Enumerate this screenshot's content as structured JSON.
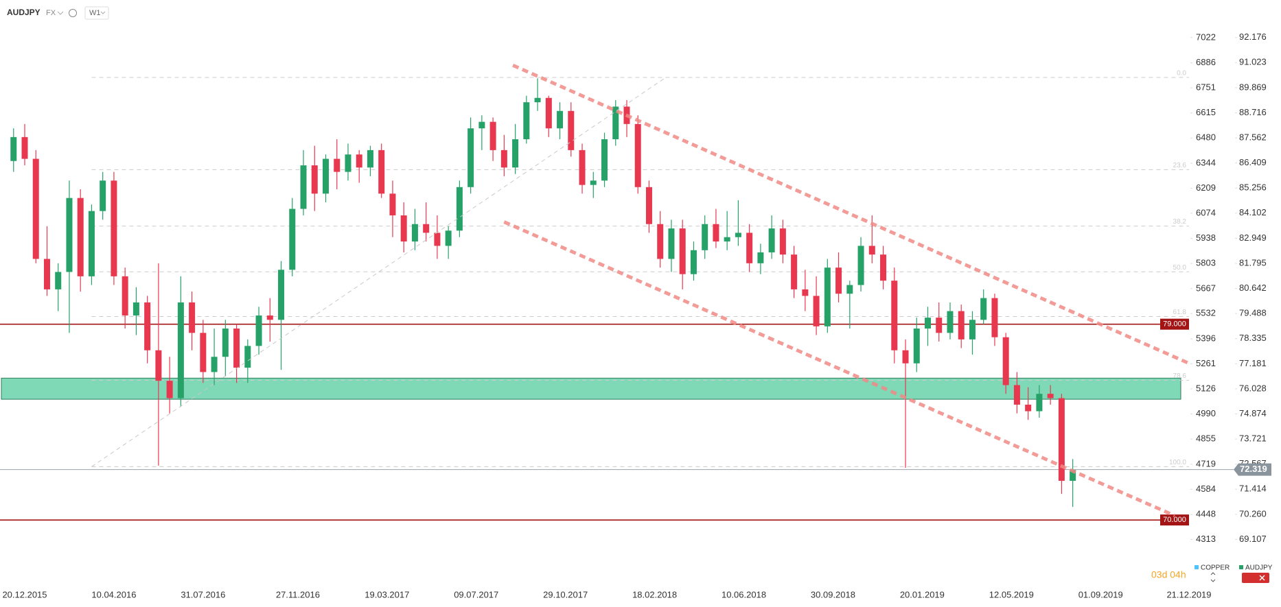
{
  "header": {
    "symbol": "AUDJPY",
    "market": "FX",
    "timeframe": "W1"
  },
  "timer": "03d 04h",
  "legend_items": [
    {
      "name": "COPPER",
      "color": "#4fc3f7"
    },
    {
      "name": "AUDJPY",
      "color": "#26a269"
    }
  ],
  "chart_data": {
    "type": "candlestick",
    "ylim": [
      67.64,
      93.9
    ],
    "yticks": [
      92.176,
      91.023,
      89.869,
      88.716,
      87.562,
      86.409,
      85.256,
      84.102,
      82.949,
      81.795,
      80.642,
      79.488,
      78.335,
      77.181,
      76.028,
      74.874,
      73.721,
      72.567,
      71.414,
      {
        "value": 70.26,
        "label": "70.260"
      },
      69.107
    ],
    "y2lim": [
      4141,
      7225
    ],
    "y2ticks": [
      7022,
      6886,
      6751,
      6615,
      6480,
      6344,
      6209,
      6074,
      5938,
      5803,
      5667,
      5532,
      5396,
      5261,
      5126,
      4990,
      4855,
      4719,
      4584,
      4448,
      4313
    ],
    "xticks": [
      "20.12.2015",
      "10.04.2016",
      "31.07.2016",
      "27.11.2016",
      "19.03.2017",
      "09.07.2017",
      "29.10.2017",
      "18.02.2018",
      "10.06.2018",
      "30.09.2018",
      "20.01.2019",
      "12.05.2019",
      "01.09.2019",
      "21.12.2019"
    ],
    "up_color": "#26a269",
    "down_color": "#e8384f",
    "series": [
      {
        "name": "AUDJPY",
        "x": [
          "06.12.2015",
          "20.12.2015",
          "03.01.2016",
          "17.01.2016",
          "31.01.2016",
          "14.02.2016",
          "28.02.2016",
          "13.03.2016",
          "27.03.2016",
          "10.04.2016",
          "24.04.2016",
          "08.05.2016",
          "22.05.2016",
          "05.06.2016",
          "19.06.2016",
          "03.07.2016",
          "17.07.2016",
          "31.07.2016",
          "14.08.2016",
          "28.08.2016",
          "11.09.2016",
          "25.09.2016",
          "09.10.2016",
          "23.10.2016",
          "06.11.2016",
          "20.11.2016",
          "04.12.2016",
          "18.12.2016",
          "01.01.2017",
          "15.01.2017",
          "29.01.2017",
          "12.02.2017",
          "26.02.2017",
          "12.03.2017",
          "26.03.2017",
          "09.04.2017",
          "23.04.2017",
          "07.05.2017",
          "21.05.2017",
          "04.06.2017",
          "18.06.2017",
          "02.07.2017",
          "16.07.2017",
          "30.07.2017",
          "13.08.2017",
          "27.08.2017",
          "10.09.2017",
          "24.09.2017",
          "08.10.2017",
          "22.10.2017",
          "05.11.2017",
          "19.11.2017",
          "03.12.2017",
          "17.12.2017",
          "31.12.2017",
          "14.01.2018",
          "28.01.2018",
          "11.02.2018",
          "25.02.2018",
          "11.03.2018",
          "25.03.2018",
          "08.04.2018",
          "22.04.2018",
          "06.05.2018",
          "20.05.2018",
          "03.06.2018",
          "17.06.2018",
          "01.07.2018",
          "15.07.2018",
          "29.07.2018",
          "12.08.2018",
          "26.08.2018",
          "09.09.2018",
          "23.09.2018",
          "07.10.2018",
          "21.10.2018",
          "04.11.2018",
          "18.11.2018",
          "02.12.2018",
          "16.12.2018",
          "30.12.2018",
          "13.01.2019",
          "27.01.2019",
          "10.02.2019",
          "24.02.2019",
          "10.03.2019",
          "24.03.2019",
          "07.04.2019",
          "21.04.2019",
          "05.05.2019",
          "19.05.2019",
          "02.06.2019",
          "16.06.2019",
          "30.06.2019",
          "14.07.2019",
          "28.07.2019"
        ],
        "values": [
          [
            86.5,
            88.0,
            86.0,
            87.6
          ],
          [
            87.6,
            88.2,
            86.3,
            86.6
          ],
          [
            86.6,
            87.0,
            81.8,
            82.0
          ],
          [
            82.0,
            83.5,
            80.3,
            80.6
          ],
          [
            80.6,
            81.8,
            79.6,
            81.4
          ],
          [
            81.4,
            85.6,
            78.6,
            84.8
          ],
          [
            84.8,
            85.2,
            80.5,
            81.2
          ],
          [
            81.2,
            84.5,
            80.8,
            84.2
          ],
          [
            84.2,
            86.0,
            83.8,
            85.6
          ],
          [
            85.6,
            86.0,
            80.8,
            81.2
          ],
          [
            81.2,
            81.6,
            78.8,
            79.4
          ],
          [
            79.4,
            80.7,
            78.5,
            80.0
          ],
          [
            80.0,
            80.3,
            77.2,
            77.8
          ],
          [
            77.8,
            81.8,
            72.5,
            76.4
          ],
          [
            76.4,
            77.5,
            74.9,
            75.6
          ],
          [
            75.6,
            81.2,
            75.2,
            80.0
          ],
          [
            80.0,
            80.5,
            77.8,
            78.6
          ],
          [
            78.6,
            79.2,
            76.3,
            76.8
          ],
          [
            76.8,
            78.8,
            76.2,
            77.5
          ],
          [
            77.5,
            79.2,
            76.6,
            78.8
          ],
          [
            78.8,
            79.0,
            76.3,
            77.0
          ],
          [
            77.0,
            78.3,
            76.3,
            78.0
          ],
          [
            78.0,
            79.8,
            77.6,
            79.4
          ],
          [
            79.4,
            80.2,
            78.2,
            79.2
          ],
          [
            79.2,
            81.9,
            76.9,
            81.5
          ],
          [
            81.5,
            84.8,
            81.2,
            84.3
          ],
          [
            84.3,
            87.0,
            84.0,
            86.3
          ],
          [
            86.3,
            87.2,
            84.2,
            85.0
          ],
          [
            85.0,
            86.8,
            84.6,
            86.6
          ],
          [
            86.6,
            87.5,
            85.2,
            86.0
          ],
          [
            86.0,
            87.3,
            85.6,
            86.8
          ],
          [
            86.8,
            87.0,
            85.5,
            86.2
          ],
          [
            86.2,
            87.2,
            85.8,
            87.0
          ],
          [
            87.0,
            87.3,
            84.8,
            85.0
          ],
          [
            85.0,
            85.6,
            83.0,
            84.0
          ],
          [
            84.0,
            84.6,
            82.3,
            82.8
          ],
          [
            82.8,
            84.3,
            82.4,
            83.6
          ],
          [
            83.6,
            84.6,
            82.8,
            83.2
          ],
          [
            83.2,
            84.0,
            82.0,
            82.6
          ],
          [
            82.6,
            83.5,
            82.0,
            83.3
          ],
          [
            83.3,
            85.6,
            83.0,
            85.3
          ],
          [
            85.3,
            88.5,
            85.0,
            88.0
          ],
          [
            88.0,
            88.6,
            87.0,
            88.3
          ],
          [
            88.3,
            88.5,
            86.5,
            87.0
          ],
          [
            87.0,
            87.7,
            85.8,
            86.2
          ],
          [
            86.2,
            88.2,
            85.9,
            87.5
          ],
          [
            87.5,
            89.5,
            87.3,
            89.2
          ],
          [
            89.2,
            90.3,
            88.8,
            89.4
          ],
          [
            89.4,
            89.5,
            87.6,
            88.0
          ],
          [
            88.0,
            89.2,
            87.5,
            88.8
          ],
          [
            88.8,
            89.2,
            86.7,
            87.0
          ],
          [
            87.0,
            87.3,
            85.0,
            85.4
          ],
          [
            85.4,
            86.0,
            84.8,
            85.6
          ],
          [
            85.6,
            87.8,
            85.3,
            87.5
          ],
          [
            87.5,
            89.3,
            87.2,
            89.0
          ],
          [
            89.0,
            89.3,
            87.6,
            88.2
          ],
          [
            88.2,
            88.6,
            85.0,
            85.3
          ],
          [
            85.3,
            85.6,
            83.2,
            83.6
          ],
          [
            83.6,
            84.2,
            81.6,
            82.0
          ],
          [
            82.0,
            83.8,
            81.4,
            83.4
          ],
          [
            83.4,
            83.8,
            80.6,
            81.3
          ],
          [
            81.3,
            82.8,
            81.0,
            82.4
          ],
          [
            82.4,
            84.0,
            82.0,
            83.6
          ],
          [
            83.6,
            84.3,
            82.5,
            82.8
          ],
          [
            82.8,
            84.2,
            82.4,
            83.0
          ],
          [
            83.0,
            84.7,
            82.6,
            83.2
          ],
          [
            83.2,
            83.6,
            81.4,
            81.8
          ],
          [
            81.8,
            82.7,
            81.3,
            82.3
          ],
          [
            82.3,
            84.0,
            82.0,
            83.4
          ],
          [
            83.4,
            83.8,
            81.8,
            82.2
          ],
          [
            82.2,
            82.6,
            80.2,
            80.6
          ],
          [
            80.6,
            81.5,
            79.6,
            80.3
          ],
          [
            80.3,
            81.2,
            78.5,
            78.9
          ],
          [
            78.9,
            82.0,
            78.6,
            81.6
          ],
          [
            81.6,
            82.3,
            80.0,
            80.4
          ],
          [
            80.4,
            81.0,
            78.8,
            80.8
          ],
          [
            80.8,
            83.0,
            80.5,
            82.6
          ],
          [
            82.6,
            84.0,
            81.8,
            82.2
          ],
          [
            82.2,
            82.6,
            80.6,
            81.0
          ],
          [
            81.0,
            81.6,
            77.2,
            77.8
          ],
          [
            77.8,
            78.3,
            72.4,
            77.2
          ],
          [
            77.2,
            79.3,
            76.8,
            78.8
          ],
          [
            78.8,
            79.8,
            78.0,
            79.3
          ],
          [
            79.3,
            80.0,
            78.2,
            78.6
          ],
          [
            78.6,
            80.0,
            78.3,
            79.6
          ],
          [
            79.6,
            79.9,
            77.9,
            78.3
          ],
          [
            78.3,
            79.6,
            77.6,
            79.2
          ],
          [
            79.2,
            80.6,
            79.0,
            80.2
          ],
          [
            80.2,
            80.4,
            78.0,
            78.4
          ],
          [
            78.4,
            78.6,
            75.8,
            76.2
          ],
          [
            76.2,
            76.8,
            74.9,
            75.3
          ],
          [
            75.3,
            76.1,
            74.6,
            75.0
          ],
          [
            75.0,
            76.2,
            74.7,
            75.8
          ],
          [
            75.8,
            76.2,
            75.3,
            75.6
          ],
          [
            75.6,
            75.8,
            71.2,
            71.8
          ],
          [
            71.8,
            72.8,
            70.6,
            72.3
          ]
        ]
      }
    ],
    "last_price": 72.319,
    "levels": [
      {
        "value": 79,
        "label": "79.000",
        "color": "#a31515"
      },
      {
        "value": 70,
        "label": "70.000",
        "color": "#a31515"
      }
    ],
    "zone": {
      "from": 75.55,
      "to": 76.52,
      "color": "#7fd8b6"
    },
    "fib_levels": [
      {
        "level": "0.0",
        "price": 90.34
      },
      {
        "level": "23.6",
        "price": 86.1
      },
      {
        "level": "38.2",
        "price": 83.51
      },
      {
        "level": "50.0",
        "price": 81.41
      },
      {
        "level": "61.8",
        "price": 79.35
      },
      {
        "level": "78.6",
        "price": 76.42
      },
      {
        "level": "100.0",
        "price": 72.45
      }
    ],
    "trendlines": [
      {
        "x": [
          "24.08.2017",
          "21.12.2019"
        ],
        "y": [
          90.9,
          77.2
        ],
        "color": "#f08a86",
        "style": "thick"
      },
      {
        "x": [
          "13.08.2017",
          "03.12.2019"
        ],
        "y": [
          83.7,
          70.2
        ],
        "color": "#f08a86",
        "style": "thick"
      },
      {
        "x": [
          "13.03.2016",
          "04.03.2018"
        ],
        "y": [
          72.45,
          90.34
        ],
        "color": "#c8c8c8",
        "style": "thin"
      }
    ]
  }
}
